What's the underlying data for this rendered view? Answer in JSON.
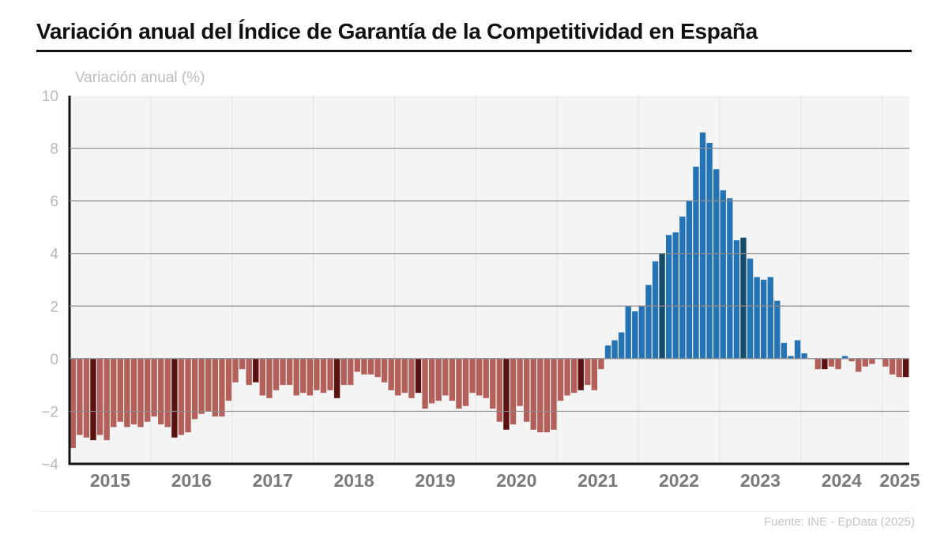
{
  "header": {
    "title": "Variación anual del Índice de Garantía de la Competitividad en España"
  },
  "footer": {
    "source": "Fuente: INE - EpData (2025)"
  },
  "colors": {
    "negative": "#b35f5a",
    "negative_highlight": "#5c1111",
    "positive": "#2474b5",
    "positive_highlight": "#154c6b",
    "plot_background": "#f4f4f4",
    "gridline": "#8c8c8c"
  },
  "chart_data": {
    "type": "bar",
    "title": "Variación anual del Índice de Garantía de la Competitividad en España",
    "xlabel": "",
    "ylabel": "Variación anual (%)",
    "ylim": [
      -4,
      10
    ],
    "yticks": [
      10,
      8,
      6,
      4,
      2,
      0,
      -2,
      -4
    ],
    "ytick_labels": [
      "10",
      "8",
      "6",
      "4",
      "2",
      "0",
      "−2",
      "−4"
    ],
    "grid": true,
    "start": "2015-01",
    "frequency": "monthly",
    "xtick_labels": [
      "2015",
      "2016",
      "2017",
      "2018",
      "2019",
      "2020",
      "2021",
      "2022",
      "2023",
      "2024",
      "2025"
    ],
    "values": [
      -3.4,
      -2.9,
      -3.0,
      -3.1,
      -2.9,
      -3.1,
      -2.6,
      -2.4,
      -2.6,
      -2.5,
      -2.6,
      -2.4,
      -2.2,
      -2.5,
      -2.6,
      -3.0,
      -2.9,
      -2.8,
      -2.3,
      -2.1,
      -2.0,
      -2.2,
      -2.2,
      -1.6,
      -0.9,
      -0.4,
      -1.0,
      -0.9,
      -1.4,
      -1.5,
      -1.2,
      -1.0,
      -1.0,
      -1.4,
      -1.3,
      -1.4,
      -1.2,
      -1.3,
      -1.2,
      -1.5,
      -1.0,
      -1.0,
      -0.5,
      -0.6,
      -0.6,
      -0.7,
      -0.9,
      -1.2,
      -1.4,
      -1.3,
      -1.5,
      -1.3,
      -1.9,
      -1.7,
      -1.6,
      -1.4,
      -1.6,
      -1.9,
      -1.8,
      -1.3,
      -1.4,
      -1.5,
      -1.9,
      -2.4,
      -2.7,
      -2.5,
      -1.8,
      -2.4,
      -2.7,
      -2.8,
      -2.8,
      -2.7,
      -1.6,
      -1.4,
      -1.3,
      -1.2,
      -1.0,
      -1.2,
      -0.4,
      0.5,
      0.7,
      1.0,
      2.0,
      1.8,
      2.0,
      2.8,
      3.7,
      4.0,
      4.7,
      4.8,
      5.4,
      6.0,
      7.3,
      8.6,
      8.2,
      7.2,
      6.4,
      6.1,
      4.5,
      4.6,
      3.8,
      3.1,
      3.0,
      3.1,
      2.2,
      0.6,
      0.1,
      0.7,
      0.2,
      0.0,
      -0.4,
      -0.4,
      -0.3,
      -0.4,
      0.1,
      -0.1,
      -0.5,
      -0.3,
      -0.2,
      0.0,
      -0.3,
      -0.6,
      -0.7,
      -0.7
    ],
    "highlighted_indices": [
      3,
      15,
      27,
      39,
      51,
      64,
      75,
      87,
      99,
      111,
      123
    ],
    "legend": "none"
  }
}
